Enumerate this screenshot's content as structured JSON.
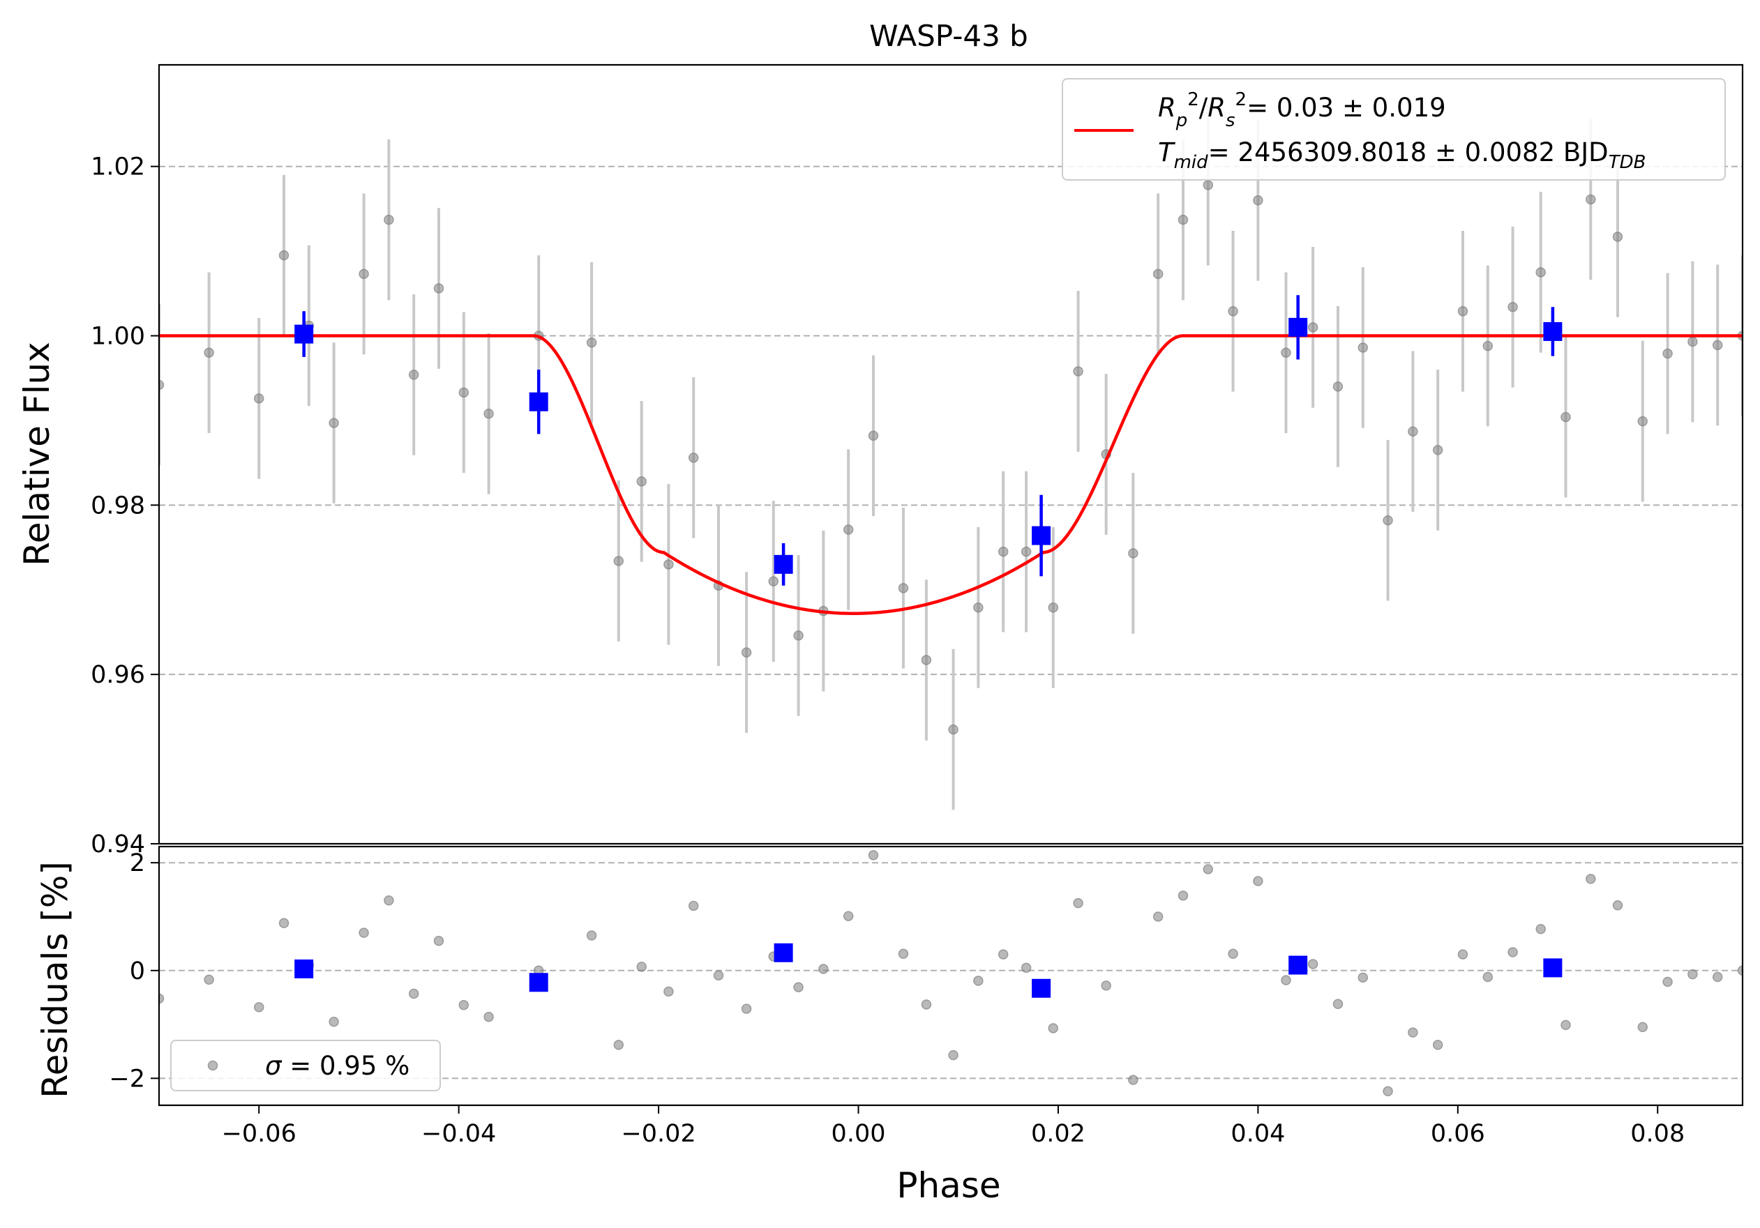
{
  "chart_data": {
    "type": "scatter",
    "title": "WASP-43 b",
    "xlabel": "Phase",
    "xlim": [
      -0.07,
      0.0885
    ],
    "xticks": [
      -0.06,
      -0.04,
      -0.02,
      0.0,
      0.02,
      0.04,
      0.06,
      0.08
    ],
    "xtick_labels": [
      "−0.06",
      "−0.04",
      "−0.02",
      "0.00",
      "0.02",
      "0.04",
      "0.06",
      "0.08"
    ],
    "grid": true,
    "panels": {
      "flux": {
        "ylabel": "Relative Flux",
        "ylim": [
          0.94,
          1.032
        ],
        "yticks": [
          0.94,
          0.96,
          0.98,
          1.0,
          1.02
        ],
        "ytick_labels": [
          "0.94",
          "0.96",
          "0.98",
          "1.00",
          "1.02"
        ],
        "legend_position": "top-right",
        "model_legend": {
          "line1": "= 0.03 ± 0.019",
          "line2": "= 2456309.8018 ± 0.0082 BJD",
          "sub": "TDB"
        }
      },
      "residuals": {
        "ylabel": "Residuals [%]",
        "ylim": [
          -2.5,
          2.3
        ],
        "yticks": [
          -2,
          0,
          2
        ],
        "ytick_labels": [
          "−2",
          "0",
          "2"
        ],
        "legend_position": "bottom-left",
        "legend_label": "= 0.95 %"
      }
    },
    "transit_model": {
      "color": "#ff0000",
      "baseline": 1.0,
      "depth": 0.0328,
      "t1": -0.0325,
      "t2": -0.0195,
      "t3": 0.0185,
      "t4": 0.0325
    },
    "series": [
      {
        "role": "unbinned",
        "color": "#808080",
        "errorbar_color": "#c8c8c8",
        "x": [
          -0.07,
          -0.065,
          -0.06,
          -0.0575,
          -0.055,
          -0.0525,
          -0.0495,
          -0.047,
          -0.0445,
          -0.042,
          -0.0395,
          -0.037,
          -0.032,
          -0.0267,
          -0.024,
          -0.0217,
          -0.019,
          -0.0165,
          -0.014,
          -0.0112,
          -0.0085,
          -0.006,
          -0.0035,
          -0.001,
          0.0015,
          0.0045,
          0.0068,
          0.0095,
          0.012,
          0.0145,
          0.0168,
          0.0195,
          0.022,
          0.0248,
          0.0275,
          0.03,
          0.0325,
          0.035,
          0.0375,
          0.04,
          0.0428,
          0.0455,
          0.048,
          0.0505,
          0.053,
          0.0555,
          0.058,
          0.0605,
          0.063,
          0.0655,
          0.0683,
          0.0708,
          0.0733,
          0.076,
          0.0785,
          0.081,
          0.0835,
          0.086,
          0.0885
        ],
        "y": [
          0.9942,
          0.998,
          0.9926,
          1.0095,
          1.0012,
          0.9897,
          1.0073,
          1.0137,
          0.9954,
          1.0056,
          0.9933,
          0.9908,
          1.0,
          0.9992,
          0.9734,
          0.9828,
          0.973,
          0.9856,
          0.9705,
          0.9626,
          0.971,
          0.9646,
          0.9675,
          0.9771,
          0.9882,
          0.9702,
          0.9617,
          0.9535,
          0.9679,
          0.9745,
          0.9745,
          0.9679,
          0.9958,
          0.986,
          0.9743,
          1.0073,
          1.0137,
          1.0178,
          1.0029,
          1.016,
          0.998,
          1.001,
          0.994,
          0.9986,
          0.9782,
          0.9887,
          0.9865,
          1.0029,
          0.9988,
          1.0034,
          1.0075,
          0.9904,
          1.0161,
          1.0117,
          0.9899,
          0.9979,
          0.9993,
          0.9989,
          1.0
        ],
        "yerr": 0.0095,
        "residuals": [
          -0.52,
          -0.17,
          -0.68,
          0.88,
          0.1,
          -0.95,
          0.7,
          1.3,
          -0.43,
          0.55,
          -0.64,
          -0.86,
          0.0,
          0.65,
          -1.38,
          0.07,
          -0.39,
          1.2,
          -0.09,
          -0.71,
          0.26,
          -0.31,
          0.03,
          1.01,
          2.14,
          0.31,
          -0.63,
          -1.57,
          -0.19,
          0.3,
          0.05,
          -1.07,
          1.25,
          -0.28,
          -2.03,
          1.0,
          1.39,
          1.88,
          0.31,
          1.66,
          -0.18,
          0.12,
          -0.62,
          -0.13,
          -2.24,
          -1.15,
          -1.38,
          0.3,
          -0.12,
          0.34,
          0.77,
          -1.01,
          1.7,
          1.21,
          -1.05,
          -0.21,
          -0.07,
          -0.12,
          0.0
        ]
      },
      {
        "role": "binned",
        "color": "#0000ff",
        "x": [
          -0.0555,
          -0.032,
          -0.0075,
          0.0183,
          0.044,
          0.0695
        ],
        "y": [
          1.0002,
          0.9922,
          0.973,
          0.9764,
          1.001,
          1.0005
        ],
        "yerr": [
          0.0027,
          0.0038,
          0.0025,
          0.0048,
          0.0038,
          0.0029
        ],
        "residuals": [
          0.03,
          -0.22,
          0.33,
          -0.33,
          0.1,
          0.05
        ]
      }
    ]
  }
}
